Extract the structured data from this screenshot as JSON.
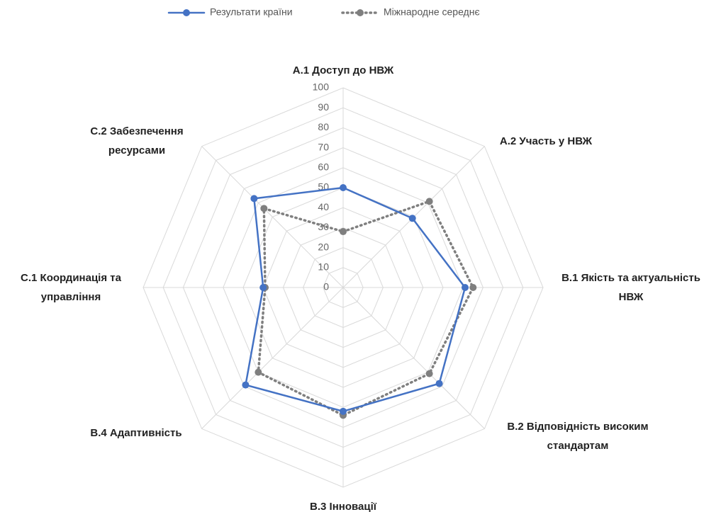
{
  "chart_data": {
    "type": "radar",
    "categories": [
      [
        "А.1 Доступ до НВЖ"
      ],
      [
        "А.2 Участь у НВЖ"
      ],
      [
        "В.1 Якість та актуальність",
        "НВЖ"
      ],
      [
        "В.2 Відповідність високим",
        "стандартам"
      ],
      [
        "В.3 Інновації"
      ],
      [
        "В.4  Адаптивність"
      ],
      [
        "С.1 Координація та",
        "управління"
      ],
      [
        "С.2 Забезпечення",
        "ресурсами"
      ]
    ],
    "series": [
      {
        "name": "Результати країни",
        "color": "#4472c4",
        "values": [
          50,
          49,
          61,
          68,
          62,
          69,
          40,
          63
        ]
      },
      {
        "name": "Міжнародне середнє",
        "color": "#7f7f7f",
        "values": [
          28,
          61,
          65,
          61,
          64,
          60,
          39,
          56
        ]
      }
    ],
    "ylim": [
      0,
      100
    ],
    "yticks": [
      0,
      10,
      20,
      30,
      40,
      50,
      60,
      70,
      80,
      90,
      100
    ],
    "grid": true,
    "legend": "top"
  }
}
